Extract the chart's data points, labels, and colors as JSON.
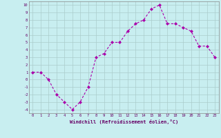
{
  "x": [
    0,
    1,
    2,
    3,
    4,
    5,
    6,
    7,
    8,
    9,
    10,
    11,
    12,
    13,
    14,
    15,
    16,
    17,
    18,
    19,
    20,
    21,
    22,
    23
  ],
  "y": [
    1,
    1,
    0,
    -2,
    -3,
    -4,
    -3,
    -1,
    3,
    3.5,
    5,
    5,
    6.5,
    7.5,
    8,
    9.5,
    10,
    7.5,
    7.5,
    7,
    6.5,
    4.5,
    4.5,
    3
  ],
  "line_color": "#aa00aa",
  "marker_color": "#aa00aa",
  "bg_color": "#c8eef0",
  "grid_color": "#aacccc",
  "xlabel": "Windchill (Refroidissement éolien,°C)",
  "xlim": [
    -0.5,
    23.5
  ],
  "ylim": [
    -4.5,
    10.5
  ],
  "yticks": [
    -4,
    -3,
    -2,
    -1,
    0,
    1,
    2,
    3,
    4,
    5,
    6,
    7,
    8,
    9,
    10
  ],
  "xticks": [
    0,
    1,
    2,
    3,
    4,
    5,
    6,
    7,
    8,
    9,
    10,
    11,
    12,
    13,
    14,
    15,
    16,
    17,
    18,
    19,
    20,
    21,
    22,
    23
  ]
}
